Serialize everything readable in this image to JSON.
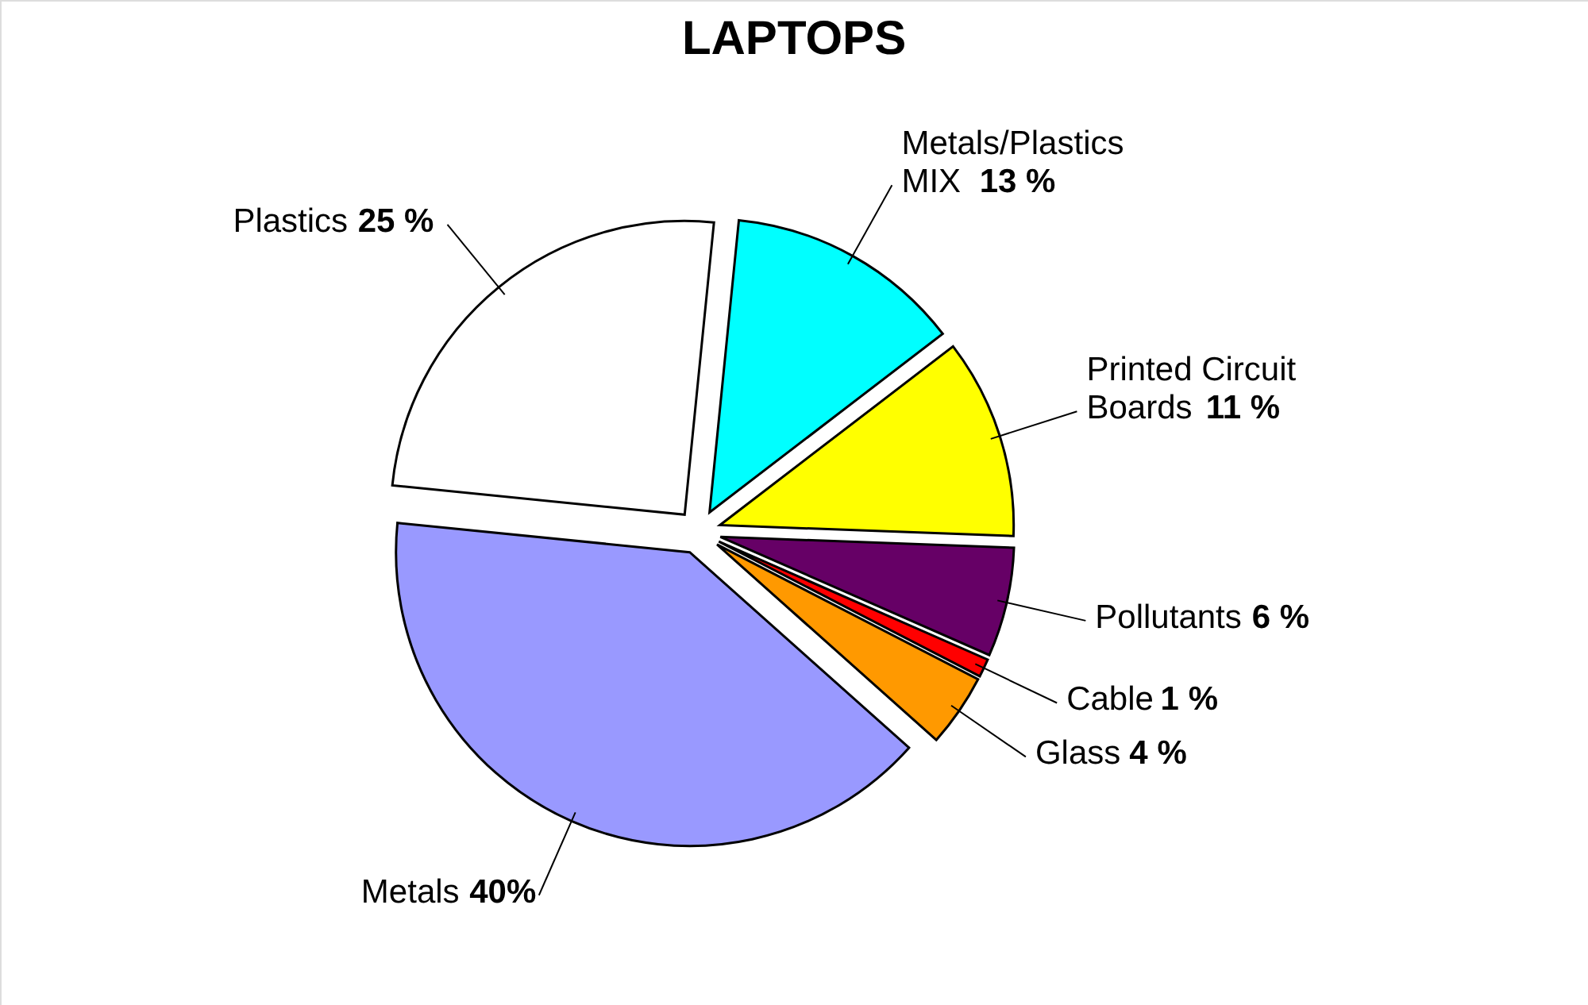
{
  "chart_data": {
    "type": "pie",
    "title": "LAPTOPS",
    "categories": [
      "Metals/Plastics MIX",
      "Printed Circuit Boards",
      "Pollutants",
      "Cable",
      "Glass",
      "Metals",
      "Plastics"
    ],
    "values": [
      13,
      11,
      6,
      1,
      4,
      40,
      25
    ],
    "value_labels": [
      "13 %",
      "11 %",
      "6 %",
      "1 %",
      "4 %",
      "40%",
      "25 %"
    ],
    "colors": [
      "#00ffff",
      "#ffff00",
      "#660066",
      "#ff0000",
      "#ff9900",
      "#9999ff",
      "#ffffff"
    ],
    "legend": false
  }
}
